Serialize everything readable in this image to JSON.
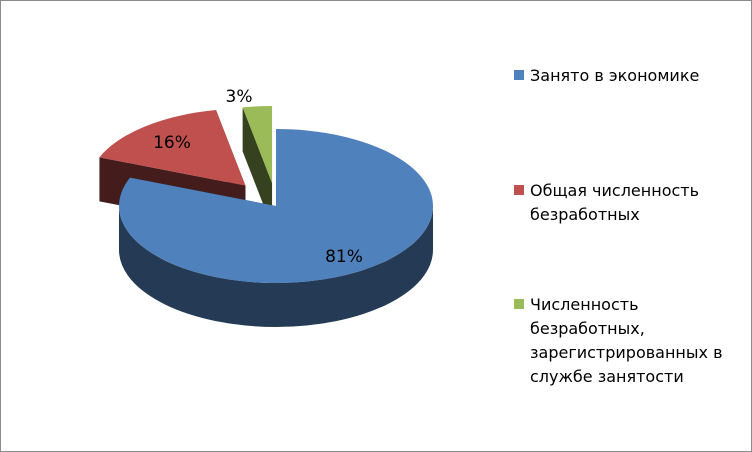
{
  "chart_data": {
    "type": "pie",
    "three_d": true,
    "exploded": true,
    "title": "",
    "categories": [
      "Занято в экономике",
      "Общая численность безработных",
      "Численность безработных, зарегистрированных в службе занятости"
    ],
    "values": [
      81,
      16,
      3
    ],
    "data_labels": [
      "81%",
      "16%",
      "3%"
    ],
    "colors": [
      "#4f81bd",
      "#c0504d",
      "#9bbb59"
    ],
    "legend_position": "right"
  }
}
